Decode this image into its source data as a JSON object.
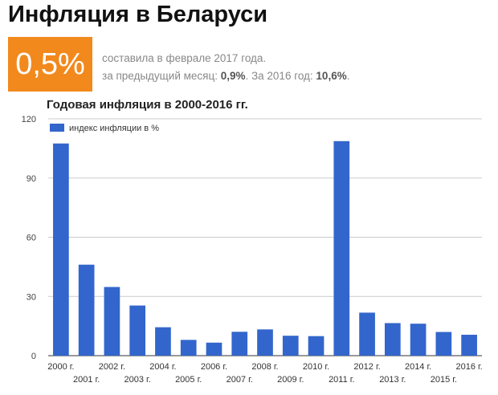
{
  "header": {
    "title": "Инфляция в Беларуси"
  },
  "badge": {
    "value": "0,5%",
    "color": "#f2891d"
  },
  "summary": {
    "line1": "составила в феврале 2017 года.",
    "line2_prefix": "за предыдущий месяц: ",
    "month_value": "0,9%",
    "line2_mid": ". За 2016 год: ",
    "year_value": "10,6%",
    "line2_suffix": "."
  },
  "chart_data": {
    "type": "bar",
    "title": "Годовая инфляция в 2000-2016 гг.",
    "categories": [
      "2000 г.",
      "2001 г.",
      "2002 г.",
      "2003 г.",
      "2004 г.",
      "2005 г.",
      "2006 г.",
      "2007 г.",
      "2008 г.",
      "2009 г.",
      "2010 г.",
      "2011 г.",
      "2012 г.",
      "2013 г.",
      "2014 г.",
      "2015 г.",
      "2016 г."
    ],
    "series": [
      {
        "name": "индекс инфляции в %",
        "color": "#3366cc",
        "values": [
          107.5,
          46.1,
          34.8,
          25.4,
          14.4,
          8.0,
          6.6,
          12.1,
          13.3,
          10.1,
          9.9,
          108.7,
          21.8,
          16.5,
          16.2,
          12.0,
          10.6
        ]
      }
    ],
    "ylim": [
      0,
      120
    ],
    "yticks": [
      0,
      30,
      60,
      90,
      120
    ],
    "xlabel": "",
    "ylabel": "",
    "grid": true,
    "legend": "top-left"
  }
}
